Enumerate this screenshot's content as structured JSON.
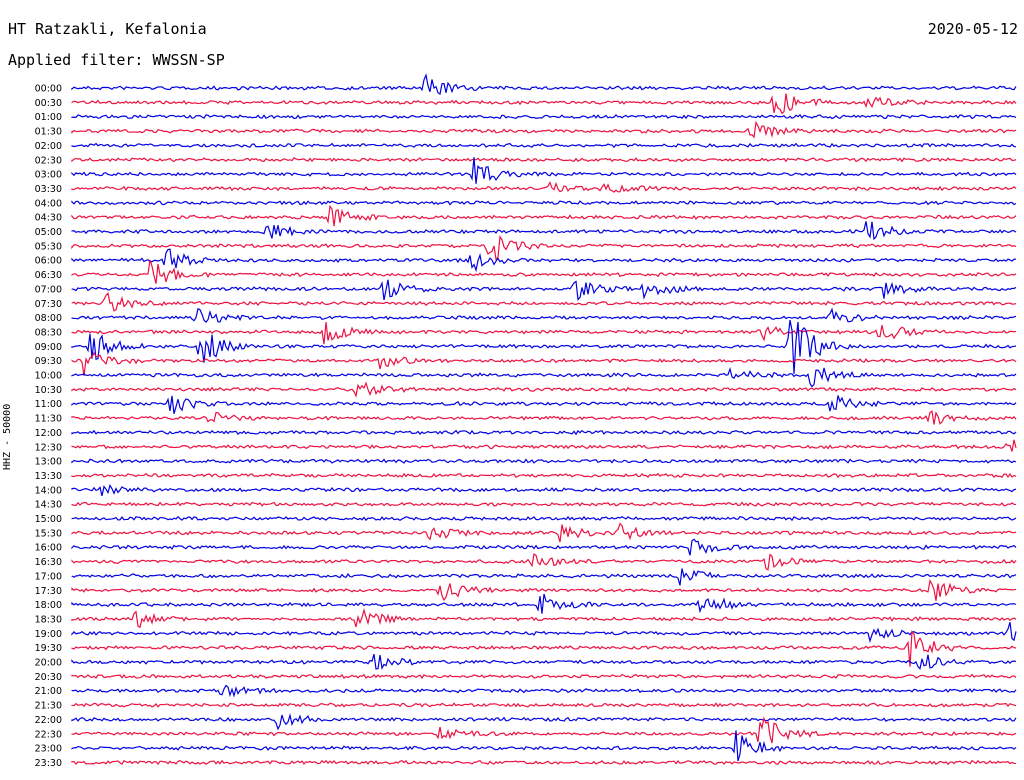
{
  "header": {
    "station": "HT Ratzakli, Kefalonia",
    "date": "2020-05-12",
    "filter": "Applied filter: WWSSN-SP"
  },
  "chart_data": {
    "type": "line",
    "title": "HT Ratzakli, Kefalonia",
    "ylabel": "HHZ - 50000",
    "rows": [
      "00:00",
      "00:30",
      "01:00",
      "01:30",
      "02:00",
      "02:30",
      "03:00",
      "03:30",
      "04:00",
      "04:30",
      "05:00",
      "05:30",
      "06:00",
      "06:30",
      "07:00",
      "07:30",
      "08:00",
      "08:30",
      "09:00",
      "09:30",
      "10:00",
      "10:30",
      "11:00",
      "11:30",
      "12:00",
      "12:30",
      "13:00",
      "13:30",
      "14:00",
      "14:30",
      "15:00",
      "15:30",
      "16:00",
      "16:30",
      "17:00",
      "17:30",
      "18:00",
      "18:30",
      "19:00",
      "19:30",
      "20:00",
      "20:30",
      "21:00",
      "21:30",
      "22:00",
      "22:30",
      "23:00",
      "23:30"
    ],
    "series_colors": [
      "#0000e6",
      "#ee1040"
    ],
    "grid": false,
    "legend": "none"
  }
}
